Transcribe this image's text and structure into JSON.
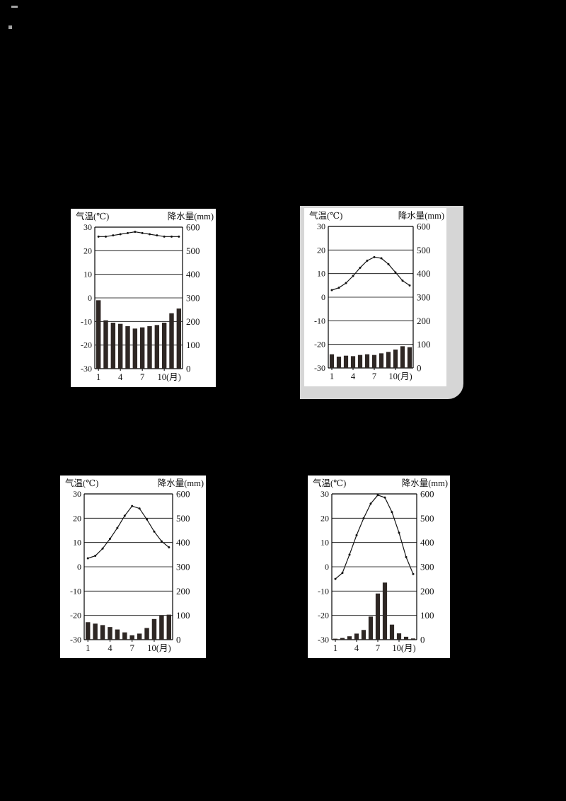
{
  "page": {
    "background_color": "#000000",
    "panel_color": "#ffffff",
    "scan_shadow_color": "#d6d6d6"
  },
  "axes": {
    "temp_axis_label": "气温(℃)",
    "precip_axis_label": "降水量(mm)",
    "temp_ticks": [
      "30",
      "20",
      "10",
      "0",
      "-10",
      "-20",
      "-30"
    ],
    "precip_ticks": [
      "600",
      "500",
      "400",
      "300",
      "200",
      "100",
      "0"
    ],
    "temp_axis_range": [
      -30,
      30
    ],
    "precip_axis_range": [
      0,
      600
    ],
    "x_tick_months": [
      1,
      4,
      7,
      10
    ],
    "x_tick_labels": [
      "1",
      "4",
      "7",
      "10(月)"
    ],
    "grid": true,
    "legend": "none",
    "line_color": "#141414",
    "bar_color": "#2e2724",
    "text_color": "#111111"
  },
  "chart_data": [
    {
      "type": "bar+line",
      "position": "top-left",
      "x": [
        1,
        2,
        3,
        4,
        5,
        6,
        7,
        8,
        9,
        10,
        11,
        12
      ],
      "series": [
        {
          "name": "气温(℃)",
          "type": "line",
          "axis": "left",
          "values": [
            26,
            26,
            26.5,
            27,
            27.5,
            28,
            27.5,
            27,
            26.5,
            26,
            26,
            26
          ]
        },
        {
          "name": "降水量(mm)",
          "type": "bar",
          "axis": "right",
          "values": [
            290,
            205,
            195,
            190,
            180,
            170,
            175,
            180,
            185,
            195,
            235,
            255
          ]
        }
      ],
      "temp_ylim": [
        -30,
        30
      ],
      "precip_ylim": [
        0,
        600
      ]
    },
    {
      "type": "bar+line",
      "position": "top-right",
      "x": [
        1,
        2,
        3,
        4,
        5,
        6,
        7,
        8,
        9,
        10,
        11,
        12
      ],
      "series": [
        {
          "name": "气温(℃)",
          "type": "line",
          "axis": "left",
          "values": [
            3,
            4,
            6,
            9,
            12.5,
            15.5,
            17,
            16.5,
            14,
            10.5,
            7,
            5
          ]
        },
        {
          "name": "降水量(mm)",
          "type": "bar",
          "axis": "right",
          "values": [
            58,
            48,
            52,
            50,
            55,
            58,
            55,
            62,
            68,
            78,
            92,
            88
          ]
        }
      ],
      "temp_ylim": [
        -30,
        30
      ],
      "precip_ylim": [
        0,
        600
      ]
    },
    {
      "type": "bar+line",
      "position": "bottom-left",
      "x": [
        1,
        2,
        3,
        4,
        5,
        6,
        7,
        8,
        9,
        10,
        11,
        12
      ],
      "series": [
        {
          "name": "气温(℃)",
          "type": "line",
          "axis": "left",
          "values": [
            3.5,
            4.5,
            7.5,
            11.5,
            16,
            21,
            25,
            24,
            19.5,
            14.5,
            10.5,
            8
          ]
        },
        {
          "name": "降水量(mm)",
          "type": "bar",
          "axis": "right",
          "values": [
            72,
            66,
            60,
            52,
            42,
            30,
            18,
            25,
            48,
            85,
            100,
            103
          ]
        }
      ],
      "temp_ylim": [
        -30,
        30
      ],
      "precip_ylim": [
        0,
        600
      ]
    },
    {
      "type": "bar+line",
      "position": "bottom-right",
      "x": [
        1,
        2,
        3,
        4,
        5,
        6,
        7,
        8,
        9,
        10,
        11,
        12
      ],
      "series": [
        {
          "name": "气温(℃)",
          "type": "line",
          "axis": "left",
          "values": [
            -5,
            -2.5,
            5,
            13,
            20,
            26,
            29.5,
            28.5,
            22.5,
            14,
            4,
            -3
          ]
        },
        {
          "name": "降水量(mm)",
          "type": "bar",
          "axis": "right",
          "values": [
            4,
            7,
            14,
            25,
            40,
            95,
            190,
            235,
            62,
            26,
            12,
            5
          ]
        }
      ],
      "temp_ylim": [
        -30,
        30
      ],
      "precip_ylim": [
        0,
        600
      ]
    }
  ]
}
